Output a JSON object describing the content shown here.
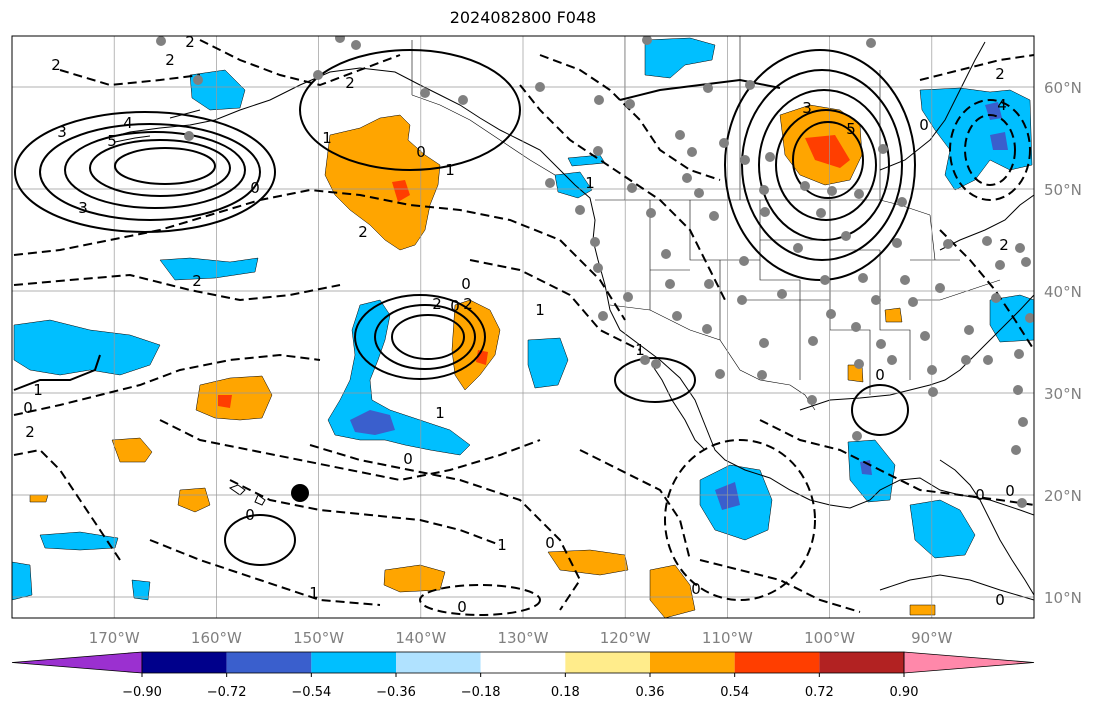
{
  "title": "2024082800 F048",
  "map": {
    "projection": "PlateCarree",
    "lon_range": [
      -180,
      -80
    ],
    "lat_range": [
      8,
      65
    ],
    "lon_ticks": [
      "170°W",
      "160°W",
      "150°W",
      "140°W",
      "130°W",
      "120°W",
      "110°W",
      "100°W",
      "90°W"
    ],
    "lat_ticks": [
      "60°N",
      "50°N",
      "40°N",
      "30°N",
      "20°N",
      "10°N"
    ],
    "grid": true
  },
  "colorbar": {
    "orientation": "horizontal",
    "extend": "both",
    "tick_labels": [
      "−0.90",
      "−0.72",
      "−0.54",
      "−0.36",
      "−0.18",
      "0.18",
      "0.36",
      "0.54",
      "0.72",
      "0.90"
    ],
    "colors": [
      "#9b30d0",
      "#00008b",
      "#3a5fcd",
      "#00bfff",
      "#b0e2ff",
      "#ffffff",
      "#ffec8b",
      "#ffa500",
      "#ff3e00",
      "#b22222",
      "#ff88aa"
    ]
  },
  "contour_labels": [
    "2",
    "2",
    "2",
    "1",
    "0",
    "1",
    "2",
    "2",
    "0",
    "3",
    "5",
    "4",
    "3",
    "2",
    "0",
    "0",
    "1",
    "0",
    "1",
    "2",
    "2",
    "1",
    "5",
    "3",
    "2",
    "4",
    "0",
    "2",
    "0",
    "1",
    "0",
    "0",
    "1",
    "0",
    "0",
    "0",
    "0",
    "1",
    "1",
    "0",
    "0",
    "2"
  ]
}
